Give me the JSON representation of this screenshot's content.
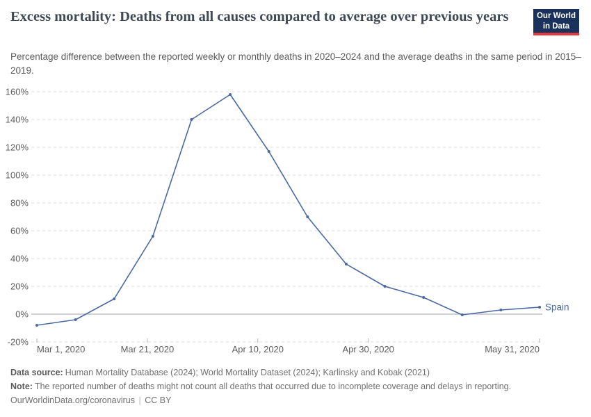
{
  "header": {
    "title": "Excess mortality: Deaths from all causes compared to average over previous years",
    "subtitle": "Percentage difference between the reported weekly or monthly deaths in 2020–2024 and the average deaths in the same period in 2015–2019.",
    "logo": {
      "line1": "Our World",
      "line2": "in Data",
      "bg_color": "#1a315c",
      "accent_color": "#de3a3f"
    }
  },
  "chart_data": {
    "type": "line",
    "title": "Excess mortality: Deaths from all causes compared to average over previous years",
    "ylabel": "",
    "xlabel": "",
    "grid": "horizontal-dashed",
    "zero_line": true,
    "y_range": [
      -20,
      160
    ],
    "x_range_days": [
      0,
      91
    ],
    "y_ticks": [
      {
        "value": 160,
        "label": "160%"
      },
      {
        "value": 140,
        "label": "140%"
      },
      {
        "value": 120,
        "label": "120%"
      },
      {
        "value": 100,
        "label": "100%"
      },
      {
        "value": 80,
        "label": "80%"
      },
      {
        "value": 60,
        "label": "60%"
      },
      {
        "value": 40,
        "label": "40%"
      },
      {
        "value": 20,
        "label": "20%"
      },
      {
        "value": 0,
        "label": "0%"
      },
      {
        "value": -20,
        "label": "-20%"
      }
    ],
    "x_ticks": [
      {
        "label": "Mar 1, 2020",
        "day": 0,
        "align": "start"
      },
      {
        "label": "Mar 21, 2020",
        "day": 20,
        "align": "middle"
      },
      {
        "label": "Apr 10, 2020",
        "day": 40,
        "align": "middle"
      },
      {
        "label": "Apr 30, 2020",
        "day": 60,
        "align": "middle"
      },
      {
        "label": "May 31, 2020",
        "day": 91,
        "align": "end"
      }
    ],
    "series": [
      {
        "name": "Spain",
        "color": "#4a69a4",
        "points": [
          {
            "date": "Mar 1, 2020",
            "day": 0,
            "value": -8
          },
          {
            "date": "Mar 8, 2020",
            "day": 7,
            "value": -4
          },
          {
            "date": "Mar 15, 2020",
            "day": 14,
            "value": 11
          },
          {
            "date": "Mar 22, 2020",
            "day": 21,
            "value": 56
          },
          {
            "date": "Mar 29, 2020",
            "day": 28,
            "value": 140
          },
          {
            "date": "Apr 5, 2020",
            "day": 35,
            "value": 158
          },
          {
            "date": "Apr 12, 2020",
            "day": 42,
            "value": 117
          },
          {
            "date": "Apr 19, 2020",
            "day": 49,
            "value": 70
          },
          {
            "date": "Apr 26, 2020",
            "day": 56,
            "value": 36
          },
          {
            "date": "May 3, 2020",
            "day": 63,
            "value": 20
          },
          {
            "date": "May 10, 2020",
            "day": 70,
            "value": 12
          },
          {
            "date": "May 17, 2020",
            "day": 77,
            "value": -0.5
          },
          {
            "date": "May 24, 2020",
            "day": 84,
            "value": 3
          },
          {
            "date": "May 31, 2020",
            "day": 91,
            "value": 5
          }
        ]
      }
    ],
    "colors": {
      "grid": "#dcdcdc",
      "zero_line": "#a3a3a3",
      "tick_mark": "#b3b3b3",
      "axis_label": "#5c5c5c"
    }
  },
  "footer": {
    "data_source_label": "Data source:",
    "data_source": "Human Mortality Database (2024); World Mortality Dataset (2024); Karlinsky and Kobak (2021)",
    "note_label": "Note:",
    "note": "The reported number of deaths might not count all deaths that occurred due to incomplete coverage and delays in reporting.",
    "url": "OurWorldinData.org/coronavirus",
    "separator": "|",
    "license": "CC BY"
  }
}
